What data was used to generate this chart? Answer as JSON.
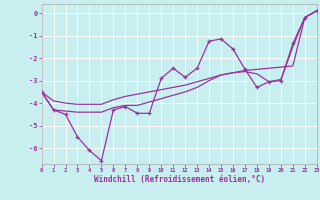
{
  "bg_color": "#c8eef0",
  "grid_color": "#ffffff",
  "line_color": "#993399",
  "xlabel": "Windchill (Refroidissement éolien,°C)",
  "xlim": [
    0,
    23
  ],
  "ylim": [
    -6.7,
    0.4
  ],
  "yticks": [
    0,
    -1,
    -2,
    -3,
    -4,
    -5,
    -6
  ],
  "xticks": [
    0,
    1,
    2,
    3,
    4,
    5,
    6,
    7,
    8,
    9,
    10,
    11,
    12,
    13,
    14,
    15,
    16,
    17,
    18,
    19,
    20,
    21,
    22,
    23
  ],
  "zigzag_x": [
    0,
    1,
    2,
    3,
    4,
    5,
    6,
    7,
    8,
    9,
    10,
    11,
    12,
    13,
    14,
    15,
    16,
    17,
    18,
    19,
    20,
    21,
    22,
    23
  ],
  "zigzag_y": [
    -3.5,
    -4.3,
    -4.5,
    -5.5,
    -6.1,
    -6.55,
    -4.3,
    -4.15,
    -4.45,
    -4.45,
    -2.9,
    -2.45,
    -2.85,
    -2.45,
    -1.25,
    -1.15,
    -1.6,
    -2.5,
    -3.3,
    -3.05,
    -3.0,
    -1.35,
    -0.2,
    0.1
  ],
  "smooth1_x": [
    0,
    1,
    2,
    3,
    4,
    5,
    6,
    7,
    8,
    9,
    10,
    11,
    12,
    13,
    14,
    15,
    16,
    17,
    18,
    19,
    20,
    21,
    22,
    23
  ],
  "smooth1_y": [
    -3.5,
    -3.9,
    -4.0,
    -4.05,
    -4.05,
    -4.05,
    -3.85,
    -3.7,
    -3.6,
    -3.5,
    -3.4,
    -3.3,
    -3.2,
    -3.05,
    -2.9,
    -2.75,
    -2.65,
    -2.55,
    -2.5,
    -2.45,
    -2.4,
    -2.35,
    -0.2,
    0.1
  ],
  "smooth2_x": [
    0,
    1,
    2,
    3,
    4,
    5,
    6,
    7,
    8,
    9,
    10,
    11,
    12,
    13,
    14,
    15,
    16,
    17,
    18,
    19,
    20,
    21,
    22,
    23
  ],
  "smooth2_y": [
    -3.5,
    -4.3,
    -4.35,
    -4.4,
    -4.4,
    -4.4,
    -4.2,
    -4.1,
    -4.1,
    -3.95,
    -3.8,
    -3.65,
    -3.5,
    -3.3,
    -3.0,
    -2.75,
    -2.65,
    -2.6,
    -2.7,
    -3.05,
    -2.95,
    -1.5,
    -0.2,
    0.1
  ]
}
